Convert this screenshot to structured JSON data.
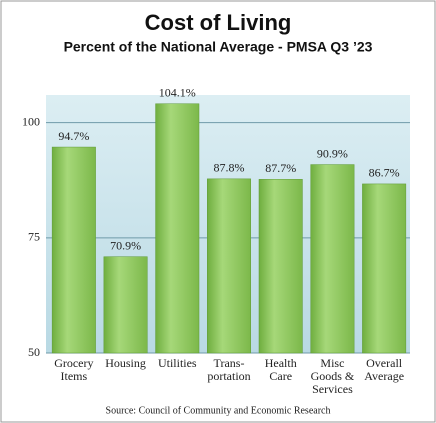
{
  "chart_data": {
    "type": "bar",
    "title": "Cost of Living",
    "subtitle": "Percent of the National Average - PMSA Q3 ’23",
    "categories": [
      "Grocery\nItems",
      "Housing",
      "Utilities",
      "Trans-\nportation",
      "Health\nCare",
      "Misc\nGoods &\nServices",
      "Overall\nAverage"
    ],
    "values": [
      94.7,
      70.9,
      104.1,
      87.8,
      87.7,
      90.9,
      86.7
    ],
    "value_labels": [
      "94.7%",
      "70.9%",
      "104.1%",
      "87.8%",
      "87.7%",
      "90.9%",
      "86.7%"
    ],
    "color": "#8cc65a",
    "ylim": [
      50,
      106
    ],
    "yticks": [
      50,
      75,
      100
    ],
    "grid": true,
    "source": "Source: Council of Community and Economic Research"
  }
}
